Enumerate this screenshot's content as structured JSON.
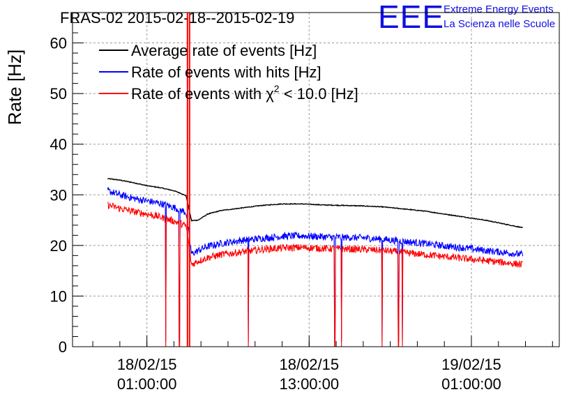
{
  "chart_data": {
    "type": "line",
    "title": "FRAS-02 2015-02-18--2015-02-19",
    "ylabel": "Rate [Hz]",
    "xlabel": "",
    "ylim": [
      0,
      66
    ],
    "yticks": [
      0,
      10,
      20,
      30,
      40,
      50,
      60
    ],
    "xticks": [
      {
        "line1": "18/02/15",
        "line2": "01:00:00",
        "hour": 1
      },
      {
        "line1": "18/02/15",
        "line2": "13:00:00",
        "hour": 13
      },
      {
        "line1": "19/02/15",
        "line2": "01:00:00",
        "hour": 25
      }
    ],
    "xlim_hours": [
      -4.5,
      31.5
    ],
    "grid": true,
    "legend_position": "top-left",
    "series": [
      {
        "name": "Average rate of events [Hz]",
        "color": "#000000",
        "x_hours": [
          -1.9,
          -1.0,
          0.0,
          1.0,
          2.0,
          3.0,
          3.5,
          3.9,
          4.3,
          4.8,
          5.5,
          6.5,
          8.0,
          9.5,
          11.0,
          12.5,
          14.0,
          15.5,
          17.0,
          18.5,
          20.0,
          21.5,
          23.0,
          24.5,
          26.0,
          27.5,
          28.8
        ],
        "values": [
          33.2,
          32.9,
          32.4,
          31.8,
          31.4,
          30.8,
          30.3,
          29.8,
          24.9,
          25.0,
          26.2,
          26.9,
          27.4,
          27.9,
          28.2,
          28.2,
          28.0,
          27.9,
          27.8,
          27.6,
          27.2,
          26.8,
          26.2,
          25.6,
          25.0,
          24.2,
          23.5
        ]
      },
      {
        "name": "Rate of events with hits [Hz]",
        "color": "#0000ff",
        "x_hours": [
          -1.9,
          -1.0,
          0.0,
          1.0,
          2.0,
          3.0,
          3.5,
          3.9,
          4.3,
          4.8,
          5.5,
          6.5,
          8.0,
          9.5,
          11.0,
          12.5,
          14.0,
          15.5,
          17.0,
          18.5,
          20.0,
          21.5,
          23.0,
          24.5,
          26.0,
          27.5,
          28.8
        ],
        "values": [
          30.8,
          30.0,
          29.3,
          28.8,
          28.3,
          27.5,
          27.0,
          26.5,
          18.3,
          19.0,
          19.8,
          20.4,
          21.0,
          21.4,
          21.8,
          21.9,
          21.7,
          21.6,
          21.5,
          21.2,
          20.8,
          20.4,
          19.9,
          19.5,
          19.0,
          18.6,
          18.2
        ]
      },
      {
        "name": "Rate of events with χ² < 10.0 [Hz]",
        "color": "#ff0000",
        "x_hours": [
          -1.9,
          -1.0,
          0.0,
          1.0,
          2.0,
          3.0,
          3.5,
          3.9,
          4.3,
          4.8,
          5.5,
          6.5,
          8.0,
          9.5,
          11.0,
          12.5,
          14.0,
          15.5,
          17.0,
          18.5,
          20.0,
          21.5,
          23.0,
          24.5,
          26.0,
          27.5,
          28.8
        ],
        "values": [
          28.0,
          27.3,
          26.7,
          26.2,
          25.6,
          24.8,
          24.3,
          23.8,
          16.2,
          16.9,
          17.6,
          18.2,
          18.7,
          19.2,
          19.5,
          19.6,
          19.4,
          19.3,
          19.2,
          19.0,
          18.6,
          18.2,
          17.8,
          17.4,
          17.0,
          16.6,
          16.2
        ]
      }
    ],
    "dropouts_hours": [
      2.4,
      3.4,
      8.5,
      14.9,
      15.4,
      18.4,
      19.6,
      19.9
    ],
    "spike_hours": 4.0
  },
  "logo": {
    "mark": "EEE",
    "line1": "Extreme Energy Events",
    "line2": "La Scienza nelle Scuole"
  },
  "legend": {
    "entries": [
      {
        "label": "Average rate of events [Hz]",
        "color": "#000000"
      },
      {
        "label": "Rate of events with hits [Hz]",
        "color": "#0000ff"
      },
      {
        "label_prefix": "Rate of events with ",
        "symbol": "χ",
        "sup": "2",
        "label_suffix": " < 10.0 [Hz]",
        "color": "#ff0000"
      }
    ]
  }
}
